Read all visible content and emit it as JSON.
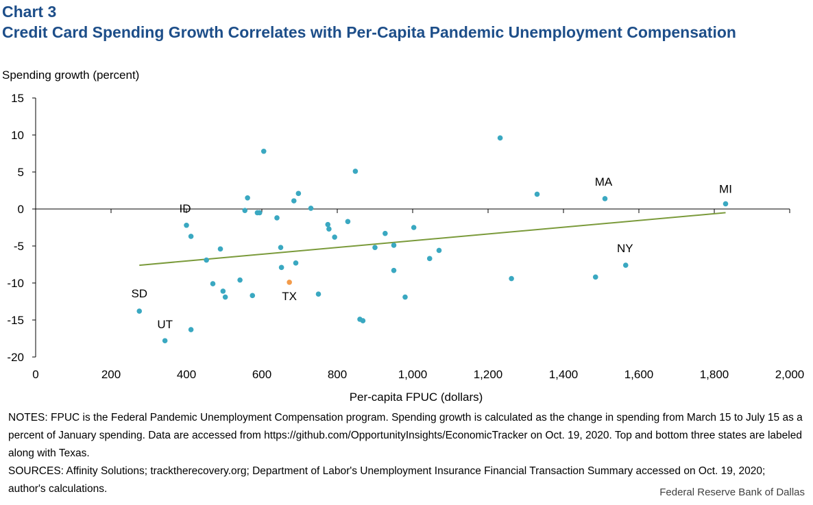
{
  "header": {
    "chart_number": "Chart 3",
    "title": "Credit Card Spending Growth Correlates with Per-Capita Pandemic Unemployment Compensation"
  },
  "chart_data": {
    "type": "scatter",
    "title": "Credit Card Spending Growth Correlates with Per-Capita Pandemic Unemployment Compensation",
    "xlabel": "Per-capita FPUC (dollars)",
    "ylabel": "Spending growth (percent)",
    "xlim": [
      0,
      2000
    ],
    "ylim": [
      -20,
      15
    ],
    "x_ticks": [
      0,
      200,
      400,
      600,
      800,
      1000,
      1200,
      1400,
      1600,
      1800,
      2000
    ],
    "x_tick_labels": [
      "0",
      "200",
      "400",
      "600",
      "800",
      "1,000",
      "1,200",
      "1,400",
      "1,600",
      "1,800",
      "2,000"
    ],
    "y_ticks": [
      15,
      10,
      5,
      0,
      -5,
      -10,
      -15,
      -20
    ],
    "y_tick_labels": [
      "15",
      "10",
      "5",
      "0",
      "-5",
      "-10",
      "-15",
      "-20"
    ],
    "grid": false,
    "point_color": "#3aa8c1",
    "highlight_color": "#f39b4a",
    "trend_color": "#7a9a3a",
    "points": [
      {
        "x": 275,
        "y": -13.8,
        "label": "SD"
      },
      {
        "x": 343,
        "y": -17.8,
        "label": "UT"
      },
      {
        "x": 400,
        "y": -2.2,
        "label": "ID"
      },
      {
        "x": 412,
        "y": -3.7
      },
      {
        "x": 412,
        "y": -16.3
      },
      {
        "x": 453,
        "y": -6.9
      },
      {
        "x": 470,
        "y": -10.1
      },
      {
        "x": 490,
        "y": -5.4
      },
      {
        "x": 497,
        "y": -11.1
      },
      {
        "x": 503,
        "y": -11.9
      },
      {
        "x": 542,
        "y": -9.6
      },
      {
        "x": 555,
        "y": -0.2
      },
      {
        "x": 562,
        "y": 1.5
      },
      {
        "x": 575,
        "y": -11.7
      },
      {
        "x": 588,
        "y": -0.5
      },
      {
        "x": 594,
        "y": -0.5
      },
      {
        "x": 605,
        "y": 7.8
      },
      {
        "x": 640,
        "y": -1.2
      },
      {
        "x": 650,
        "y": -5.2
      },
      {
        "x": 652,
        "y": -7.9
      },
      {
        "x": 673,
        "y": -9.9,
        "label": "TX",
        "highlight": true
      },
      {
        "x": 685,
        "y": 1.1
      },
      {
        "x": 690,
        "y": -7.3
      },
      {
        "x": 697,
        "y": 2.1
      },
      {
        "x": 730,
        "y": 0.1
      },
      {
        "x": 750,
        "y": -11.5
      },
      {
        "x": 775,
        "y": -2.1
      },
      {
        "x": 778,
        "y": -2.7
      },
      {
        "x": 793,
        "y": -3.8
      },
      {
        "x": 828,
        "y": -1.7
      },
      {
        "x": 848,
        "y": 5.1
      },
      {
        "x": 860,
        "y": -14.9
      },
      {
        "x": 868,
        "y": -15.1
      },
      {
        "x": 900,
        "y": -5.2
      },
      {
        "x": 927,
        "y": -3.3
      },
      {
        "x": 950,
        "y": -4.9
      },
      {
        "x": 950,
        "y": -8.3
      },
      {
        "x": 980,
        "y": -11.9
      },
      {
        "x": 1003,
        "y": -2.5
      },
      {
        "x": 1045,
        "y": -6.7
      },
      {
        "x": 1070,
        "y": -5.6
      },
      {
        "x": 1232,
        "y": 9.6
      },
      {
        "x": 1262,
        "y": -9.4
      },
      {
        "x": 1330,
        "y": 2.0
      },
      {
        "x": 1485,
        "y": -9.2
      },
      {
        "x": 1510,
        "y": 1.4,
        "label": "MA"
      },
      {
        "x": 1565,
        "y": -7.6,
        "label": "NY"
      },
      {
        "x": 1830,
        "y": 0.7,
        "label": "MI"
      }
    ],
    "trendline": {
      "x": [
        275,
        1830
      ],
      "y": [
        -7.6,
        -0.5
      ]
    }
  },
  "notes": {
    "notes_text": "NOTES: FPUC is the Federal Pandemic Unemployment Compensation program. Spending growth is calculated as the change in spending from March 15 to July 15 as a percent of January spending. Data are accessed from https://github.com/OpportunityInsights/EconomicTracker on Oct. 19, 2020. Top and bottom three states are labeled along with Texas.",
    "sources_text": "SOURCES: Affinity Solutions; tracktherecovery.org; Department of Labor's Unemployment Insurance Financial Transaction Summary accessed on Oct. 19, 2020; author's calculations."
  },
  "footer": {
    "credit": "Federal Reserve Bank of Dallas"
  }
}
